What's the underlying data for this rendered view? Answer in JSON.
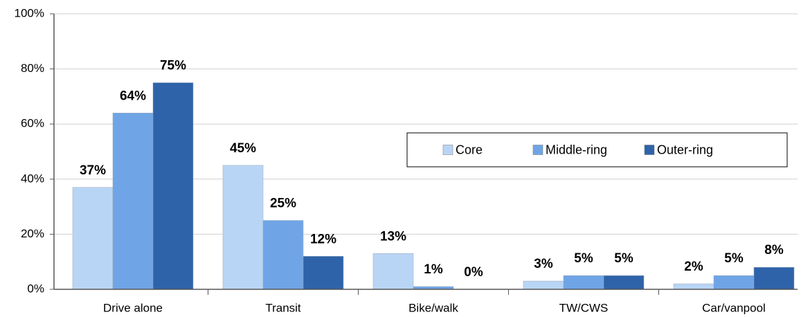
{
  "chart_data": {
    "type": "bar",
    "categories": [
      "Drive alone",
      "Transit",
      "Bike/walk",
      "TW/CWS",
      "Car/vanpool"
    ],
    "series": [
      {
        "name": "Core",
        "color": "#b9d5f5",
        "values": [
          37,
          45,
          13,
          3,
          2
        ],
        "value_labels": [
          "37%",
          "45%",
          "13%",
          "3%",
          "2%"
        ]
      },
      {
        "name": "Middle-ring",
        "color": "#6fa5e6",
        "values": [
          64,
          25,
          1,
          5,
          5
        ],
        "value_labels": [
          "64%",
          "25%",
          "1%",
          "5%",
          "5%"
        ]
      },
      {
        "name": "Outer-ring",
        "color": "#2e63a9",
        "values": [
          75,
          12,
          0,
          5,
          8
        ],
        "value_labels": [
          "75%",
          "12%",
          "0%",
          "5%",
          "8%"
        ]
      }
    ],
    "ylim": [
      0,
      100
    ],
    "yticks": [
      {
        "value": 0,
        "label": "0%"
      },
      {
        "value": 20,
        "label": "20%"
      },
      {
        "value": 40,
        "label": "40%"
      },
      {
        "value": 60,
        "label": "60%"
      },
      {
        "value": 80,
        "label": "80%"
      },
      {
        "value": 100,
        "label": "100%"
      }
    ],
    "grid": true,
    "legend": "right"
  }
}
